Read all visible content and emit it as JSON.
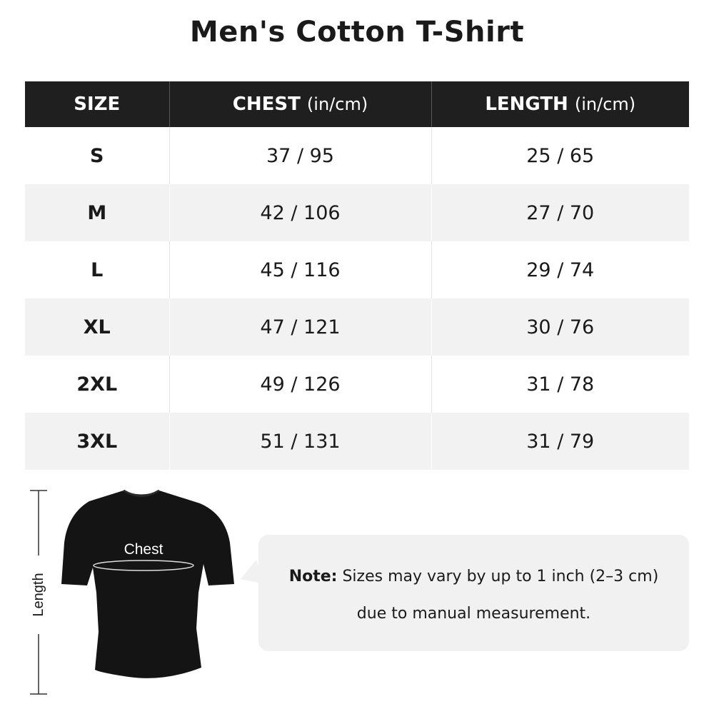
{
  "title": "Men's Cotton T-Shirt",
  "table": {
    "headers": [
      {
        "label": "SIZE",
        "unit": ""
      },
      {
        "label": "CHEST",
        "unit": "(in/cm)"
      },
      {
        "label": "LENGTH",
        "unit": "(in/cm)"
      }
    ],
    "rows": [
      {
        "size": "S",
        "chest": "37 / 95",
        "length": "25 / 65"
      },
      {
        "size": "M",
        "chest": "42 / 106",
        "length": "27 / 70"
      },
      {
        "size": "L",
        "chest": "45 / 116",
        "length": "29 / 74"
      },
      {
        "size": "XL",
        "chest": "47 / 121",
        "length": "30 / 76"
      },
      {
        "size": "2XL",
        "chest": "49 / 126",
        "length": "31 / 78"
      },
      {
        "size": "3XL",
        "chest": "51 / 131",
        "length": "31 / 79"
      }
    ]
  },
  "diagram": {
    "chest_label": "Chest",
    "length_label": "Length"
  },
  "note": {
    "prefix": "Note:",
    "line1": "Sizes may vary by up to 1 inch (2–3 cm)",
    "line2": "due to manual measurement."
  }
}
